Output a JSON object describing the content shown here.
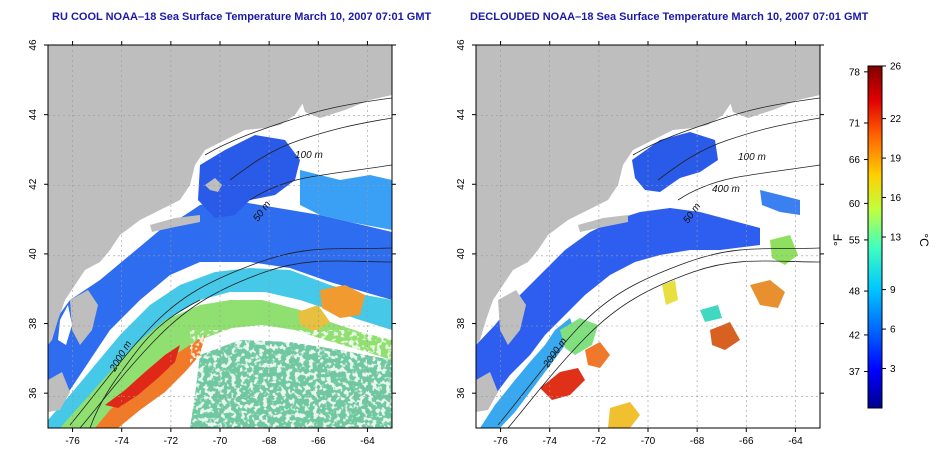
{
  "panels": [
    {
      "id": "left",
      "title": "RU COOL NOAA–18 Sea Surface Temperature March 10, 2007 07:01 GMT",
      "lat_ticks": [
        46,
        44,
        42,
        40,
        38,
        36
      ],
      "lon_ticks": [
        -76,
        -74,
        -72,
        -70,
        -68,
        -66,
        -64
      ],
      "contour_labels": [
        "100 m",
        "50 m",
        "2000 m"
      ]
    },
    {
      "id": "right",
      "title": "DECLOUDED NOAA–18 Sea Surface Temperature March 10, 2007 07:01 GMT",
      "lat_ticks": [
        46,
        44,
        42,
        40,
        38,
        36
      ],
      "lon_ticks": [
        -76,
        -74,
        -72,
        -70,
        -68,
        -66,
        -64
      ],
      "contour_labels": [
        "100 m",
        "400 m",
        "50 m",
        "2000 m"
      ]
    }
  ],
  "extent": {
    "lon": [
      -77,
      -63
    ],
    "lat": [
      35,
      46
    ]
  },
  "colorbar": {
    "f_ticks": [
      78,
      71,
      66,
      60,
      55,
      48,
      42,
      37
    ],
    "c_ticks": [
      26,
      22,
      19,
      16,
      13,
      9,
      6,
      3
    ],
    "f_label": "°F",
    "c_label": "°C",
    "c_range": [
      0,
      26
    ],
    "colors": [
      "#00008f",
      "#0000ff",
      "#0060ff",
      "#00c8ff",
      "#40ffbf",
      "#c0ff40",
      "#ffd000",
      "#ff6000",
      "#e00000",
      "#800000"
    ]
  },
  "colors": {
    "land": "#bebebe",
    "title": "#1a1aa8",
    "grid": "#9a9a9a",
    "contour": "#222222"
  }
}
